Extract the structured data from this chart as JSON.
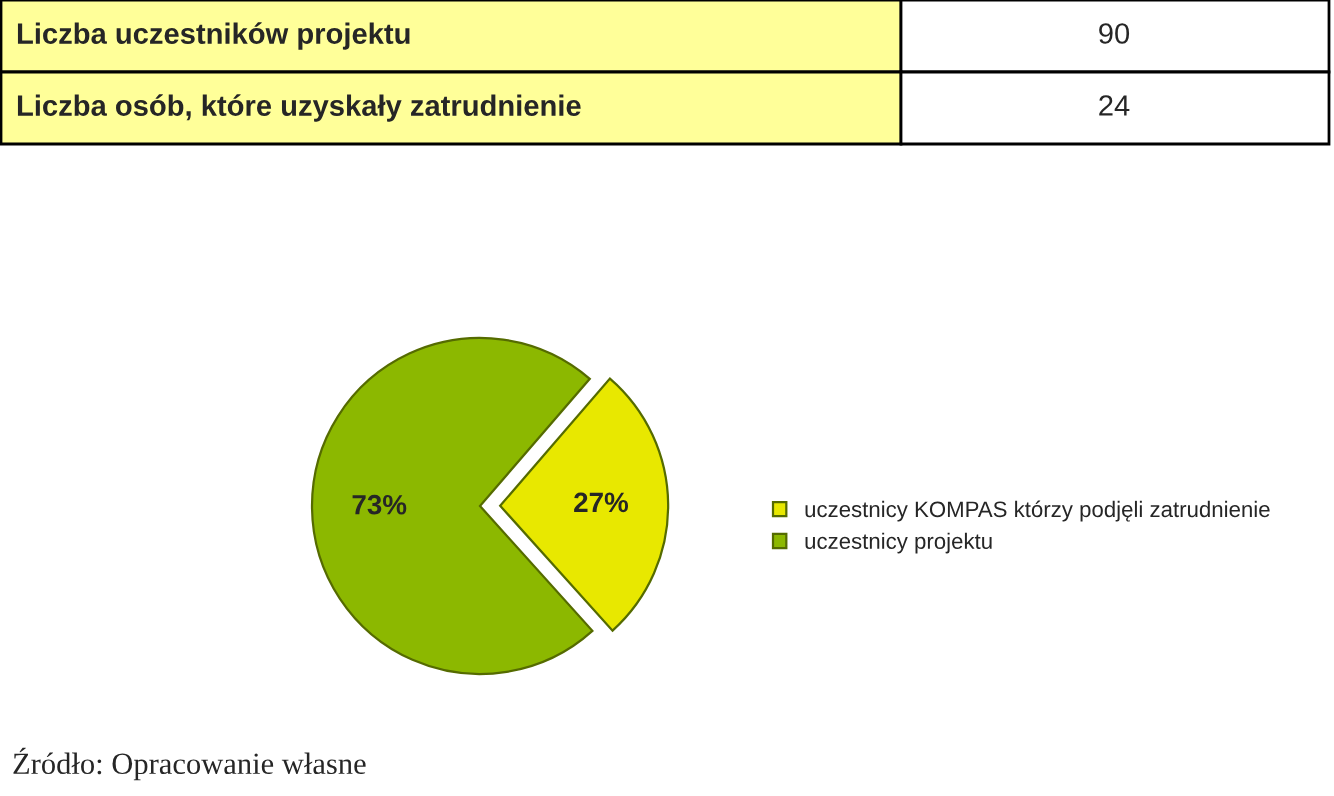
{
  "chart_data": {
    "type": "pie",
    "categories": [
      "uczestnicy KOMPAS którzy podjęli zatrudnienie",
      "uczestnicy projektu"
    ],
    "values": [
      27,
      73
    ],
    "colors": [
      "#e8e800",
      "#8cb800"
    ],
    "value_labels": [
      "27%",
      "73%"
    ],
    "legend": "right",
    "annotations": [
      "Liczba uczestników projektu",
      "90",
      "Liczba osób, które uzyskały zatrudnienie",
      "24",
      "Źródło: Opracowanie własne"
    ]
  }
}
